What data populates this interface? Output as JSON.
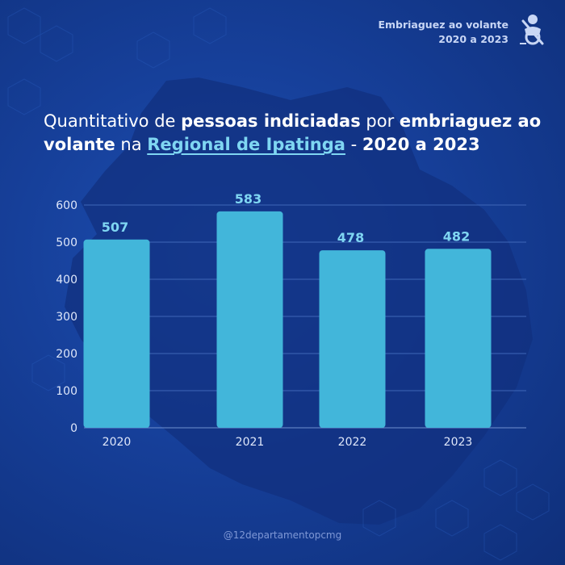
{
  "badge": {
    "line1": "Embriaguez ao volante",
    "line2": "2020 a 2023",
    "icon": "drunk-driver-icon"
  },
  "title": {
    "t1": "Quantitativo de ",
    "t2": "pessoas indiciadas",
    "t3": " por ",
    "t4": "embriaguez ao volante",
    "t5": " na ",
    "t6": "Regional de Ipatinga",
    "t7": " - ",
    "t8": "2020 a 2023"
  },
  "chart_data": {
    "type": "bar",
    "categories": [
      "2020",
      "2021",
      "2022",
      "2023"
    ],
    "values": [
      507,
      583,
      478,
      482
    ],
    "data_labels": [
      "507",
      "583",
      "478",
      "482"
    ],
    "y_ticks": [
      "0",
      "100",
      "200",
      "300",
      "400",
      "500",
      "600"
    ],
    "ylim": [
      0,
      600
    ],
    "grid": true,
    "bar_color": "#42b6da",
    "label_color": "#7fd6f2"
  },
  "footer": {
    "handle": "@12departamentopcmg"
  },
  "colors": {
    "background": "#163f99",
    "map": "#122f7d",
    "accent": "#7fd6f2"
  }
}
